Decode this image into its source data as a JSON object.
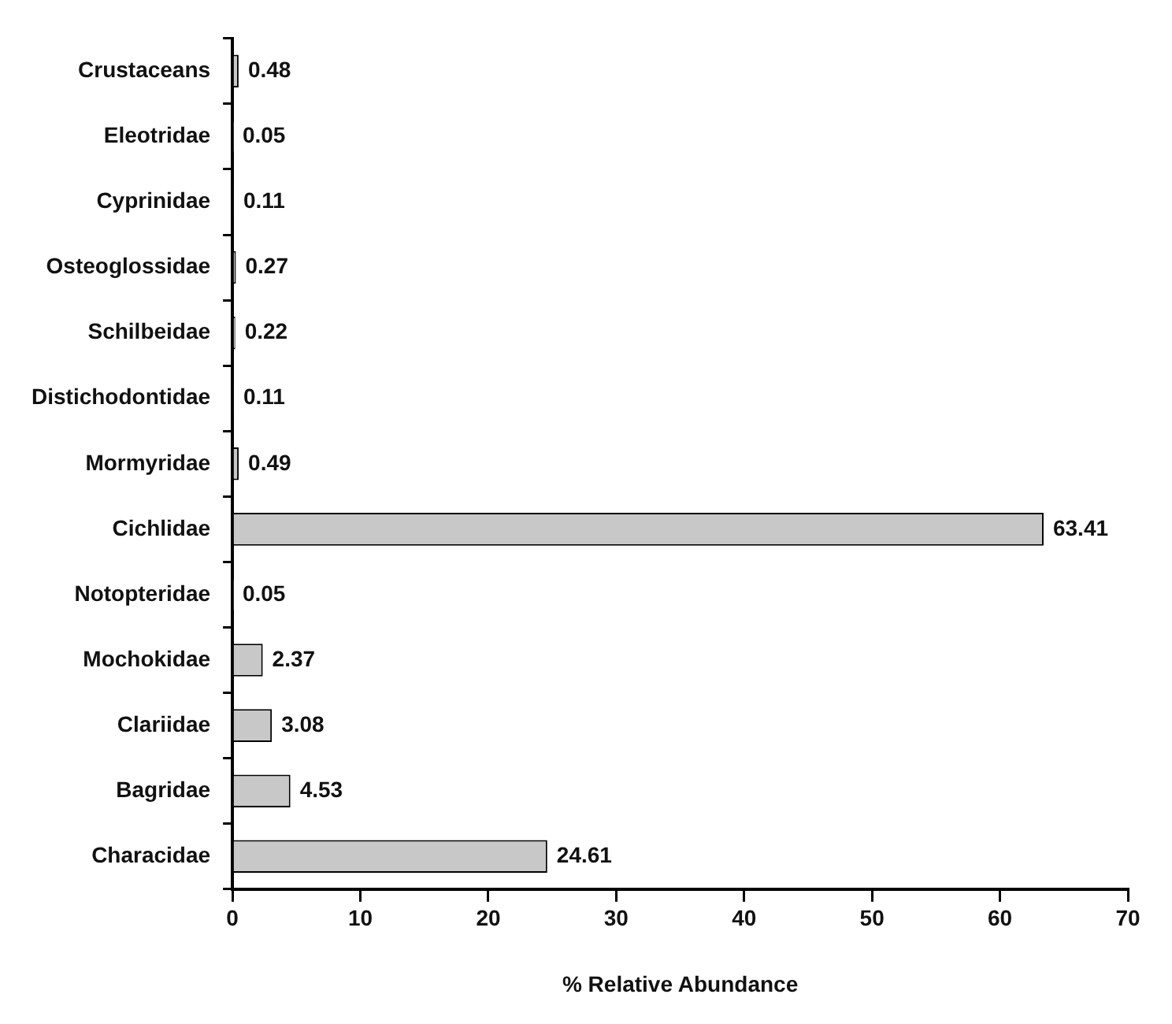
{
  "chart_data": {
    "type": "bar",
    "orientation": "horizontal",
    "xlabel": "% Relative Abundance",
    "categories": [
      "Crustaceans",
      "Eleotridae",
      "Cyprinidae",
      "Osteoglossidae",
      "Schilbeidae",
      "Distichodontidae",
      "Mormyridae",
      "Cichlidae",
      "Notopteridae",
      "Mochokidae",
      "Clariidae",
      "Bagridae",
      "Characidae"
    ],
    "values": [
      0.48,
      0.05,
      0.11,
      0.27,
      0.22,
      0.11,
      0.49,
      63.41,
      0.05,
      2.37,
      3.08,
      4.53,
      24.61
    ],
    "color": "#c8c8c8",
    "xlim": [
      0,
      70
    ],
    "xticks": [
      0,
      10,
      20,
      30,
      40,
      50,
      60,
      70
    ],
    "data_labels": true,
    "grid": false,
    "legend": false
  }
}
